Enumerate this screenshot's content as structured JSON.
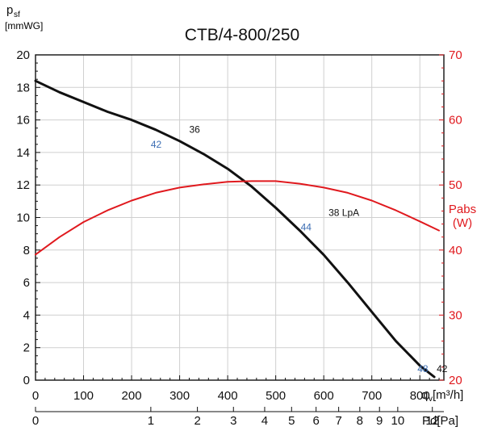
{
  "chart_data": {
    "type": "line",
    "title": "CTB/4-800/250",
    "y_axis_left": {
      "label_main": "p",
      "label_sub": "sf",
      "unit": "[mmWG]",
      "range": [
        0,
        20
      ],
      "ticks": [
        0,
        2,
        4,
        6,
        8,
        10,
        12,
        14,
        16,
        18,
        20
      ]
    },
    "y_axis_right": {
      "label": "Pabs",
      "unit": "(W)",
      "range": [
        20,
        70
      ],
      "ticks": [
        20,
        30,
        40,
        50,
        60,
        70
      ]
    },
    "x_axis": {
      "label_main": "q",
      "label_sub": "v",
      "unit": " [m³/h]",
      "range": [
        0,
        850
      ],
      "ticks": [
        0,
        100,
        200,
        300,
        400,
        500,
        600,
        700,
        800
      ]
    },
    "x_axis_secondary": {
      "label": "Pd[Pa]",
      "ticks": [
        {
          "label": "0",
          "q": 0
        },
        {
          "label": "1",
          "q": 240
        },
        {
          "label": "2",
          "q": 337
        },
        {
          "label": "3",
          "q": 412
        },
        {
          "label": "4",
          "q": 477
        },
        {
          "label": "5",
          "q": 533
        },
        {
          "label": "6",
          "q": 584
        },
        {
          "label": "7",
          "q": 631
        },
        {
          "label": "8",
          "q": 675
        },
        {
          "label": "9",
          "q": 716
        },
        {
          "label": "10",
          "q": 754
        },
        {
          "label": "12",
          "q": 826
        }
      ]
    },
    "grid": true,
    "series": [
      {
        "axis": "left",
        "color": "#111111",
        "points": [
          [
            0,
            18.4
          ],
          [
            50,
            17.7
          ],
          [
            100,
            17.1
          ],
          [
            150,
            16.5
          ],
          [
            200,
            16.0
          ],
          [
            250,
            15.4
          ],
          [
            300,
            14.7
          ],
          [
            350,
            13.9
          ],
          [
            400,
            13.0
          ],
          [
            450,
            11.9
          ],
          [
            500,
            10.6
          ],
          [
            550,
            9.2
          ],
          [
            600,
            7.7
          ],
          [
            650,
            6.0
          ],
          [
            700,
            4.2
          ],
          [
            750,
            2.4
          ],
          [
            800,
            0.9
          ],
          [
            830,
            0.2
          ]
        ]
      },
      {
        "axis": "right",
        "color": "#e0191e",
        "points": [
          [
            0,
            39.3
          ],
          [
            50,
            42.0
          ],
          [
            100,
            44.3
          ],
          [
            150,
            46.1
          ],
          [
            200,
            47.6
          ],
          [
            250,
            48.8
          ],
          [
            300,
            49.6
          ],
          [
            350,
            50.1
          ],
          [
            400,
            50.5
          ],
          [
            450,
            50.6
          ],
          [
            500,
            50.6
          ],
          [
            550,
            50.2
          ],
          [
            600,
            49.6
          ],
          [
            650,
            48.8
          ],
          [
            700,
            47.6
          ],
          [
            750,
            46.1
          ],
          [
            800,
            44.4
          ],
          [
            840,
            43.0
          ]
        ]
      }
    ],
    "annotations": [
      {
        "text": "36",
        "q": 320,
        "p": 15.2,
        "color": "#111111"
      },
      {
        "text": "42",
        "q": 240,
        "p": 14.3,
        "color": "#3b6db3"
      },
      {
        "text": "38 LpA",
        "q": 610,
        "p": 10.1,
        "color": "#111111"
      },
      {
        "text": "44",
        "q": 552,
        "p": 9.2,
        "color": "#3b6db3"
      },
      {
        "text": "48",
        "q": 795,
        "p": 0.5,
        "color": "#3b6db3"
      },
      {
        "text": "42",
        "q": 835,
        "p": 0.5,
        "color": "#111111"
      }
    ]
  }
}
